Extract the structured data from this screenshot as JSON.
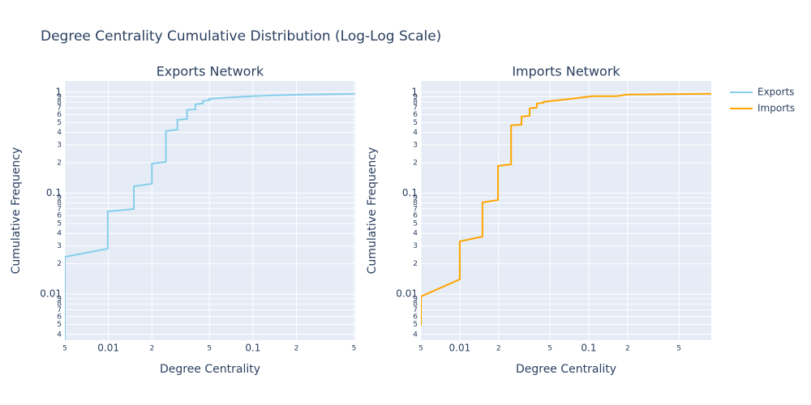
{
  "title": "Degree Centrality Cumulative Distribution (Log-Log Scale)",
  "chart_data": [
    {
      "type": "line",
      "title": "Exports Network",
      "x_label": "Degree Centrality",
      "y_label": "Cumulative Frequency",
      "log_x": true,
      "log_y": true,
      "grid": true,
      "legend": "right",
      "xlim": [
        0.005,
        0.51
      ],
      "ylim": [
        0.0035,
        1.29
      ],
      "xticks": [
        {
          "value": 0.005,
          "label": "5"
        },
        0.01,
        {
          "value": 0.02,
          "label": "2"
        },
        {
          "value": 0.05,
          "label": "5"
        },
        0.1,
        {
          "value": 0.2,
          "label": "2"
        },
        {
          "value": 0.5,
          "label": "5"
        }
      ],
      "yticks": [
        {
          "value": 0.004,
          "label": "4"
        },
        {
          "value": 0.005,
          "label": "5"
        },
        {
          "value": 0.006,
          "label": "6"
        },
        {
          "value": 0.007,
          "label": "7"
        },
        {
          "value": 0.008,
          "label": "8"
        },
        {
          "value": 0.009,
          "label": "9"
        },
        0.01,
        {
          "value": 0.02,
          "label": "2"
        },
        {
          "value": 0.03,
          "label": "3"
        },
        {
          "value": 0.04,
          "label": "4"
        },
        {
          "value": 0.05,
          "label": "5"
        },
        {
          "value": 0.06,
          "label": "6"
        },
        {
          "value": 0.07,
          "label": "7"
        },
        {
          "value": 0.08,
          "label": "8"
        },
        {
          "value": 0.09,
          "label": "9"
        },
        0.1,
        {
          "value": 0.2,
          "label": "2"
        },
        {
          "value": 0.3,
          "label": "3"
        },
        {
          "value": 0.4,
          "label": "4"
        },
        {
          "value": 0.5,
          "label": "5"
        },
        {
          "value": 0.6,
          "label": "6"
        },
        {
          "value": 0.7,
          "label": "7"
        },
        {
          "value": 0.8,
          "label": "8"
        },
        {
          "value": 0.9,
          "label": "9"
        },
        1
      ],
      "series": [
        {
          "name": "Exports",
          "color": "#87ceeb",
          "x": [
            0.005,
            0.005,
            0.0099,
            0.0099,
            0.015,
            0.015,
            0.02,
            0.02,
            0.025,
            0.025,
            0.03,
            0.03,
            0.035,
            0.035,
            0.04,
            0.04,
            0.045,
            0.045,
            0.05,
            0.05,
            0.098,
            0.213,
            0.51
          ],
          "values": [
            0.0033,
            0.0234,
            0.0282,
            0.066,
            0.0697,
            0.117,
            0.124,
            0.196,
            0.204,
            0.411,
            0.427,
            0.533,
            0.543,
            0.666,
            0.678,
            0.758,
            0.772,
            0.816,
            0.831,
            0.862,
            0.912,
            0.946,
            0.964
          ]
        }
      ]
    },
    {
      "type": "line",
      "title": "Imports Network",
      "x_label": "Degree Centrality",
      "y_label": "Cumulative Frequency",
      "log_x": true,
      "log_y": true,
      "grid": true,
      "legend": "right",
      "xlim": [
        0.005,
        0.89
      ],
      "ylim": [
        0.0035,
        1.29
      ],
      "xticks": [
        {
          "value": 0.005,
          "label": "5"
        },
        0.01,
        {
          "value": 0.02,
          "label": "2"
        },
        {
          "value": 0.05,
          "label": "5"
        },
        0.1,
        {
          "value": 0.2,
          "label": "2"
        },
        {
          "value": 0.5,
          "label": "5"
        }
      ],
      "yticks": [
        {
          "value": 0.004,
          "label": "4"
        },
        {
          "value": 0.005,
          "label": "5"
        },
        {
          "value": 0.006,
          "label": "6"
        },
        {
          "value": 0.007,
          "label": "7"
        },
        {
          "value": 0.008,
          "label": "8"
        },
        {
          "value": 0.009,
          "label": "9"
        },
        0.01,
        {
          "value": 0.02,
          "label": "2"
        },
        {
          "value": 0.03,
          "label": "3"
        },
        {
          "value": 0.04,
          "label": "4"
        },
        {
          "value": 0.05,
          "label": "5"
        },
        {
          "value": 0.06,
          "label": "6"
        },
        {
          "value": 0.07,
          "label": "7"
        },
        {
          "value": 0.08,
          "label": "8"
        },
        {
          "value": 0.09,
          "label": "9"
        },
        0.1,
        {
          "value": 0.2,
          "label": "2"
        },
        {
          "value": 0.3,
          "label": "3"
        },
        {
          "value": 0.4,
          "label": "4"
        },
        {
          "value": 0.5,
          "label": "5"
        },
        {
          "value": 0.6,
          "label": "6"
        },
        {
          "value": 0.7,
          "label": "7"
        },
        {
          "value": 0.8,
          "label": "8"
        },
        {
          "value": 0.9,
          "label": "9"
        },
        1
      ],
      "series": [
        {
          "name": "Imports",
          "color": "#ffa500",
          "x": [
            0.005,
            0.005,
            0.01,
            0.01,
            0.015,
            0.015,
            0.0198,
            0.0198,
            0.025,
            0.025,
            0.0301,
            0.0301,
            0.0348,
            0.0348,
            0.0396,
            0.0396,
            0.0446,
            0.0446,
            0.0507,
            0.074,
            0.106,
            0.164,
            0.198,
            0.89
          ],
          "values": [
            0.0049,
            0.0095,
            0.014,
            0.0333,
            0.0372,
            0.081,
            0.0855,
            0.186,
            0.193,
            0.469,
            0.477,
            0.574,
            0.585,
            0.691,
            0.704,
            0.772,
            0.786,
            0.801,
            0.816,
            0.862,
            0.912,
            0.912,
            0.946,
            0.964
          ]
        }
      ]
    }
  ]
}
